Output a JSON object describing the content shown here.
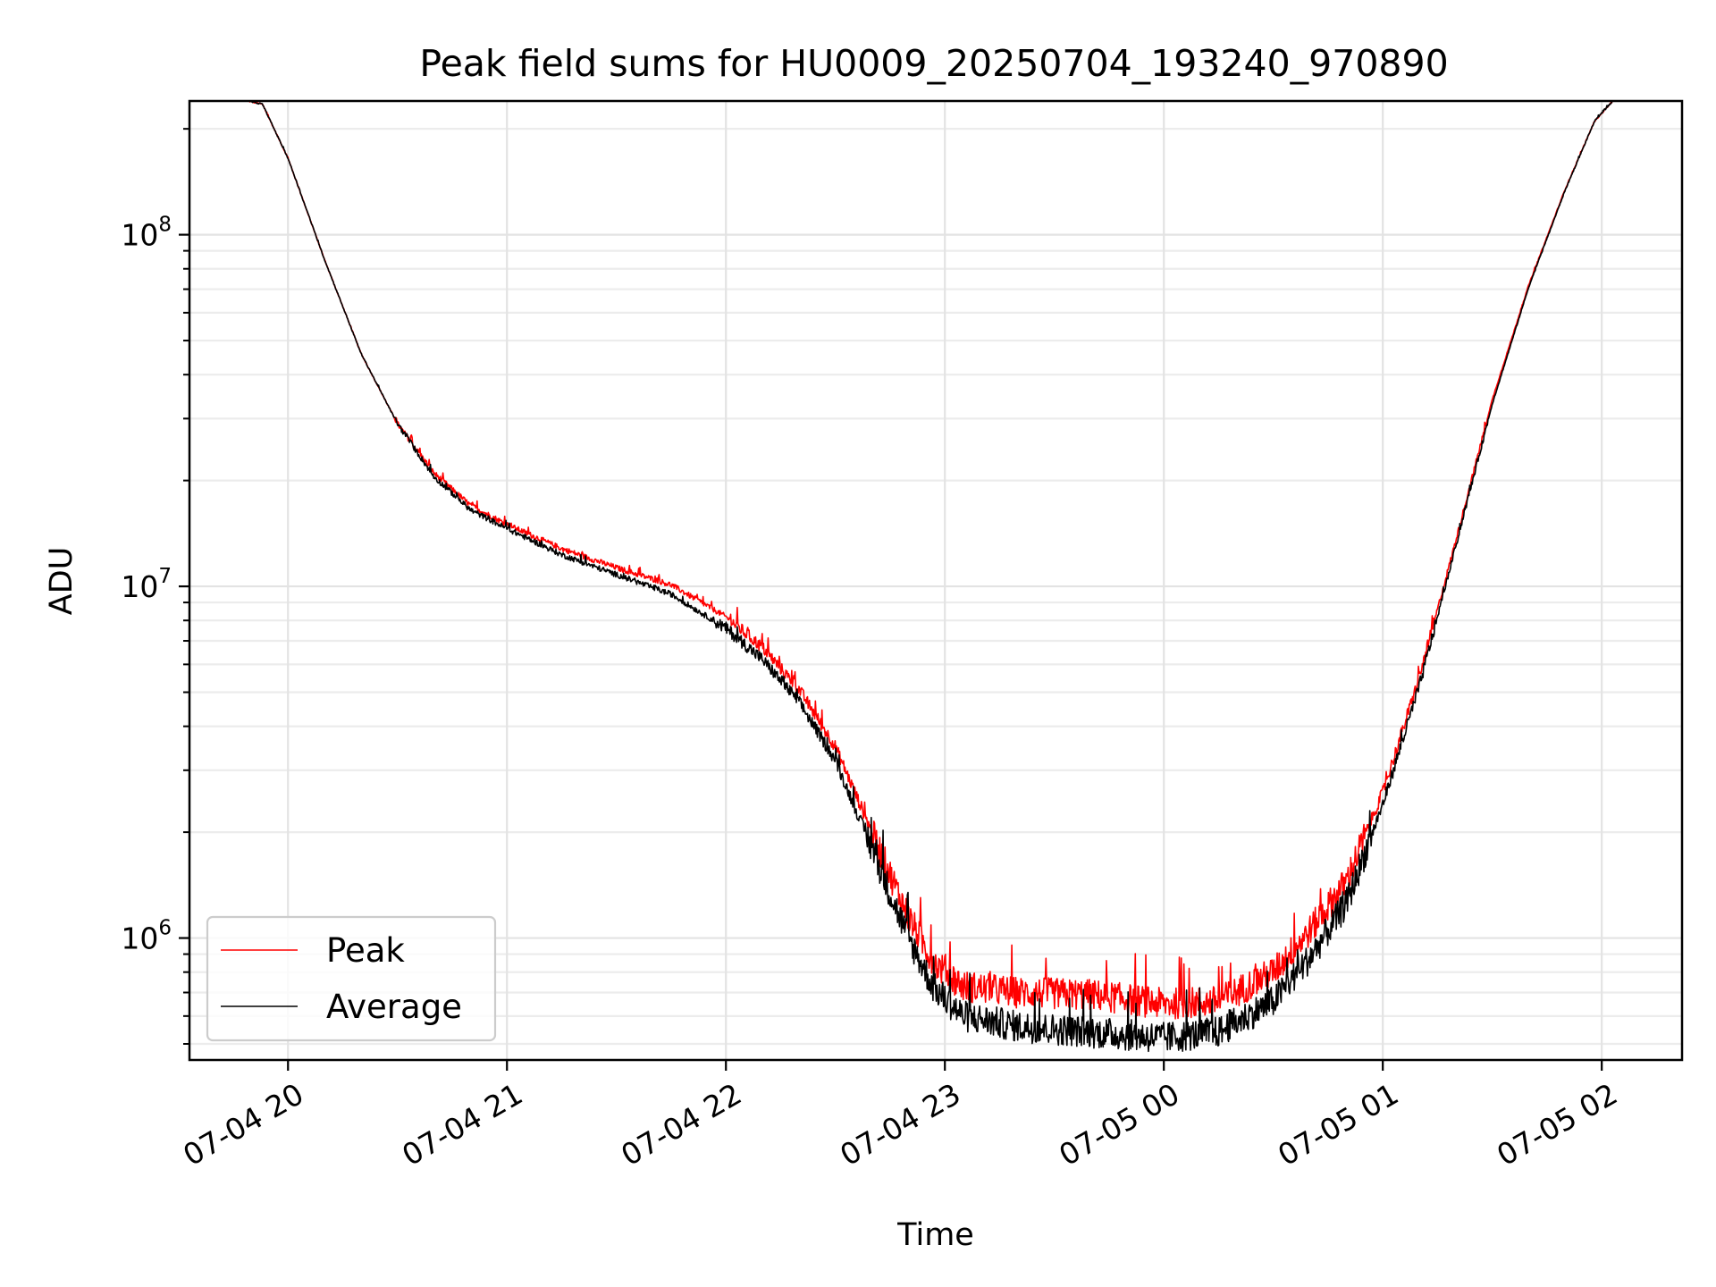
{
  "chart_data": {
    "type": "line",
    "title": "Peak field sums for HU0009_20250704_193240_970890",
    "xlabel": "Time",
    "ylabel": "ADU",
    "x_is_time": true,
    "xlim": [
      "2025-07-04 19:33",
      "2025-07-05 02:22"
    ],
    "ylim": [
      450000,
      240000000
    ],
    "y_scale": "log",
    "grid": true,
    "grid_minor": true,
    "legend_position": "lower-left",
    "x_tick_labels": [
      "07-04 20",
      "07-04 21",
      "07-04 22",
      "07-04 23",
      "07-05 00",
      "07-05 01",
      "07-05 02"
    ],
    "x_tick_values": [
      "2025-07-04 20:00",
      "2025-07-04 21:00",
      "2025-07-04 22:00",
      "2025-07-04 23:00",
      "2025-07-05 00:00",
      "2025-07-05 01:00",
      "2025-07-05 02:00"
    ],
    "y_tick_values": [
      1000000,
      10000000,
      100000000
    ],
    "y_tick_bases": [
      "10",
      "10",
      "10"
    ],
    "y_tick_exponents": [
      "6",
      "7",
      "8"
    ],
    "series": [
      {
        "name": "Peak",
        "color": "#ff0000",
        "x": [
          "2025-07-04 19:49",
          "2025-07-04 19:53",
          "2025-07-04 20:00",
          "2025-07-04 20:10",
          "2025-07-04 20:20",
          "2025-07-04 20:30",
          "2025-07-04 20:40",
          "2025-07-04 20:50",
          "2025-07-04 21:00",
          "2025-07-04 21:15",
          "2025-07-04 21:30",
          "2025-07-04 21:45",
          "2025-07-04 22:00",
          "2025-07-04 22:10",
          "2025-07-04 22:20",
          "2025-07-04 22:30",
          "2025-07-04 22:40",
          "2025-07-04 22:50",
          "2025-07-04 22:57",
          "2025-07-04 23:05",
          "2025-07-04 23:20",
          "2025-07-04 23:40",
          "2025-07-05 00:00",
          "2025-07-05 00:15",
          "2025-07-05 00:30",
          "2025-07-05 00:40",
          "2025-07-05 00:50",
          "2025-07-05 01:00",
          "2025-07-05 01:10",
          "2025-07-05 01:20",
          "2025-07-05 01:30",
          "2025-07-05 01:40",
          "2025-07-05 01:50",
          "2025-07-05 01:58",
          "2025-07-05 02:03"
        ],
        "y": [
          240000000,
          235000000,
          165000000,
          85000000,
          46000000,
          29000000,
          21000000,
          17000000,
          15000000,
          12800000,
          11300000,
          10100000,
          8200000,
          6700000,
          5100000,
          3500000,
          2000000,
          1150000,
          850000,
          730000,
          700000,
          690000,
          650000,
          660000,
          800000,
          1050000,
          1450000,
          2600000,
          5500000,
          13500000,
          34000000,
          72000000,
          135000000,
          210000000,
          240000000
        ]
      },
      {
        "name": "Average",
        "color": "#000000",
        "x": [
          "2025-07-04 19:49",
          "2025-07-04 19:53",
          "2025-07-04 20:00",
          "2025-07-04 20:10",
          "2025-07-04 20:20",
          "2025-07-04 20:30",
          "2025-07-04 20:40",
          "2025-07-04 20:50",
          "2025-07-04 21:00",
          "2025-07-04 21:15",
          "2025-07-04 21:30",
          "2025-07-04 21:45",
          "2025-07-04 22:00",
          "2025-07-04 22:10",
          "2025-07-04 22:20",
          "2025-07-04 22:30",
          "2025-07-04 22:40",
          "2025-07-04 22:50",
          "2025-07-04 22:57",
          "2025-07-04 23:05",
          "2025-07-04 23:20",
          "2025-07-04 23:40",
          "2025-07-05 00:00",
          "2025-07-05 00:15",
          "2025-07-05 00:30",
          "2025-07-05 00:40",
          "2025-07-05 00:50",
          "2025-07-05 01:00",
          "2025-07-05 01:10",
          "2025-07-05 01:20",
          "2025-07-05 01:30",
          "2025-07-05 01:40",
          "2025-07-05 01:50",
          "2025-07-05 01:58",
          "2025-07-05 02:03"
        ],
        "y": [
          240000000,
          235000000,
          165000000,
          85000000,
          46000000,
          29000000,
          20500000,
          16500000,
          14600000,
          12300000,
          10800000,
          9500000,
          7600000,
          6200000,
          4700000,
          3200000,
          1800000,
          1000000,
          720000,
          600000,
          560000,
          540000,
          520000,
          540000,
          660000,
          880000,
          1250000,
          2400000,
          5200000,
          13000000,
          33000000,
          71000000,
          134000000,
          210000000,
          240000000
        ]
      }
    ]
  }
}
